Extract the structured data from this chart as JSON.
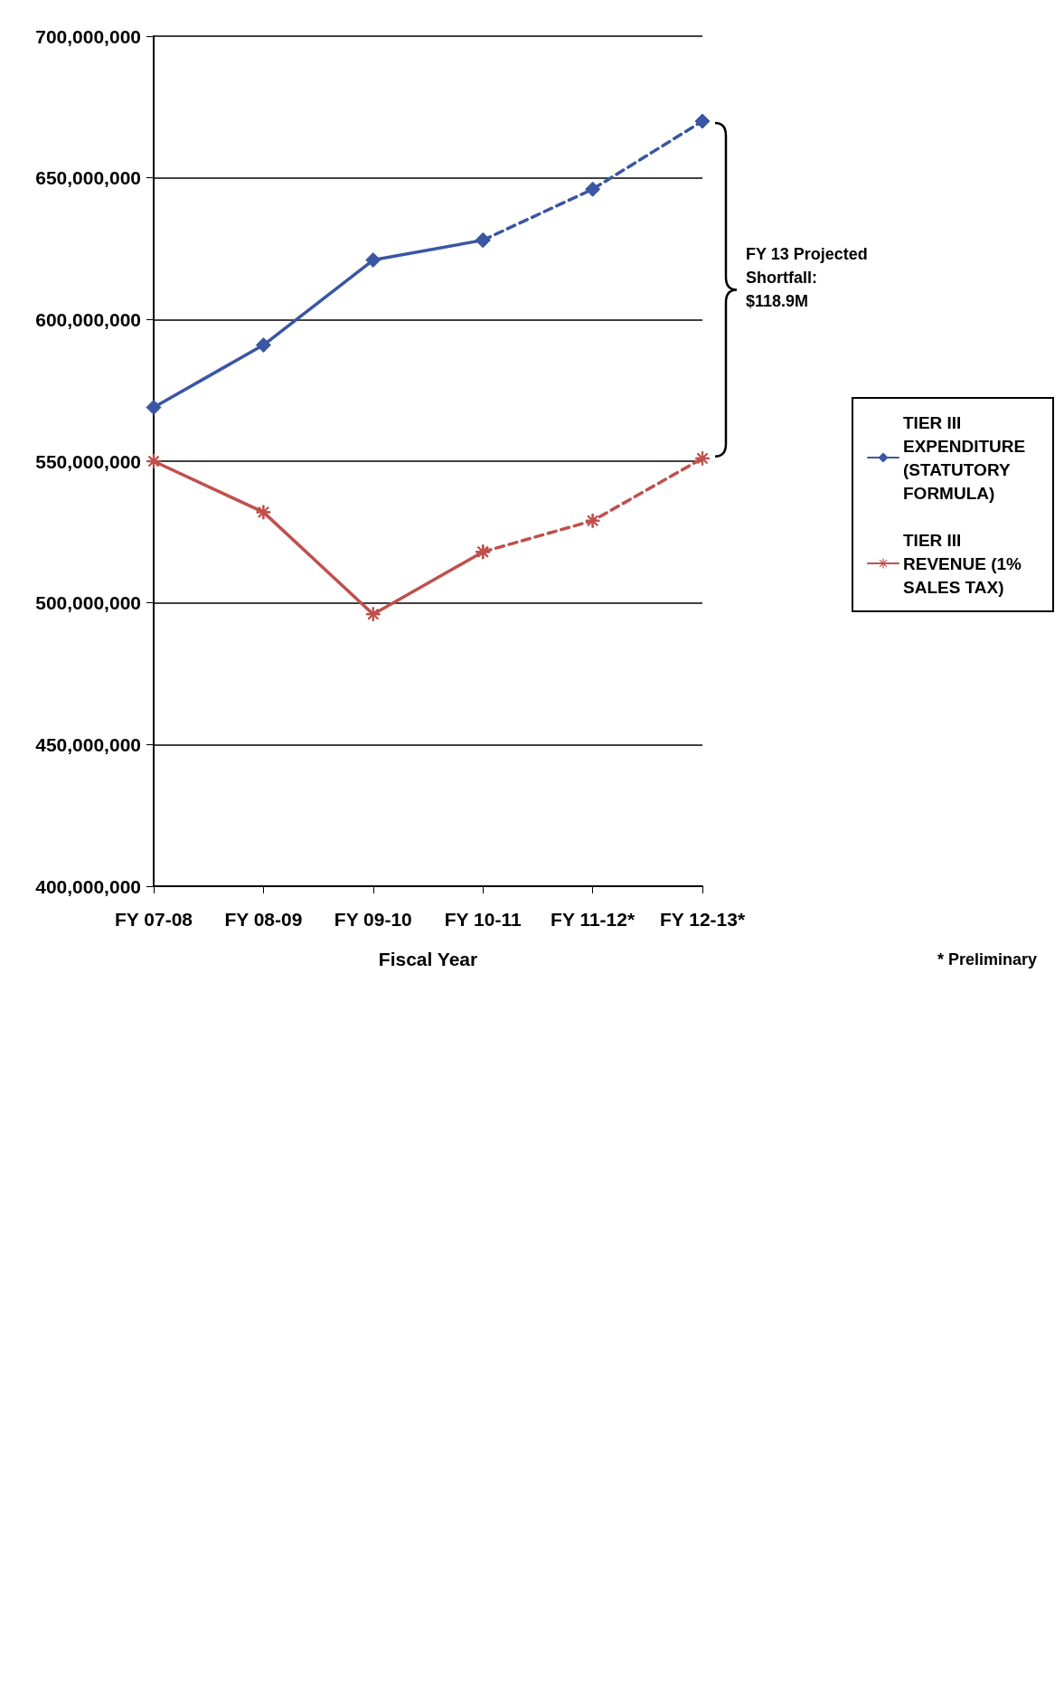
{
  "chart_data": {
    "type": "line",
    "categories": [
      "FY 07-08",
      "FY 08-09",
      "FY 09-10",
      "FY 10-11",
      "FY 11-12*",
      "FY 12-13*"
    ],
    "xlabel": "Fiscal Year",
    "series": [
      {
        "name": "TIER III EXPENDITURE (STATUTORY FORMULA)",
        "color": "#3a56a4",
        "marker": "diamond",
        "line_style": "solid",
        "values": [
          569000000,
          591000000,
          621000000,
          628000000,
          null,
          null
        ]
      },
      {
        "color": "#3a56a4",
        "marker": "diamond",
        "line_style": "dashed",
        "values": [
          null,
          null,
          null,
          628000000,
          646000000,
          670000000
        ]
      },
      {
        "name": "TIER III REVENUE (1% SALES TAX)",
        "color": "#c0504d",
        "marker": "cross",
        "line_style": "solid",
        "values": [
          550000000,
          532000000,
          496000000,
          518000000,
          null,
          null
        ]
      },
      {
        "color": "#c0504d",
        "marker": "cross",
        "line_style": "dashed",
        "values": [
          null,
          null,
          null,
          518000000,
          529000000,
          551000000
        ]
      }
    ],
    "ylim": [
      400000000,
      700000000
    ],
    "yticks": [
      {
        "value": 400000000,
        "label": "400,000,000"
      },
      {
        "value": 450000000,
        "label": "450,000,000"
      },
      {
        "value": 500000000,
        "label": "500,000,000"
      },
      {
        "value": 550000000,
        "label": "550,000,000"
      },
      {
        "value": 600000000,
        "label": "600,000,000"
      },
      {
        "value": 650000000,
        "label": "650,000,000"
      },
      {
        "value": 700000000,
        "label": "700,000,000"
      }
    ],
    "grid": "y",
    "legend": "right",
    "annotations": [
      "FY 13 Projected Shortfall: $118.9M",
      "* Preliminary"
    ]
  }
}
